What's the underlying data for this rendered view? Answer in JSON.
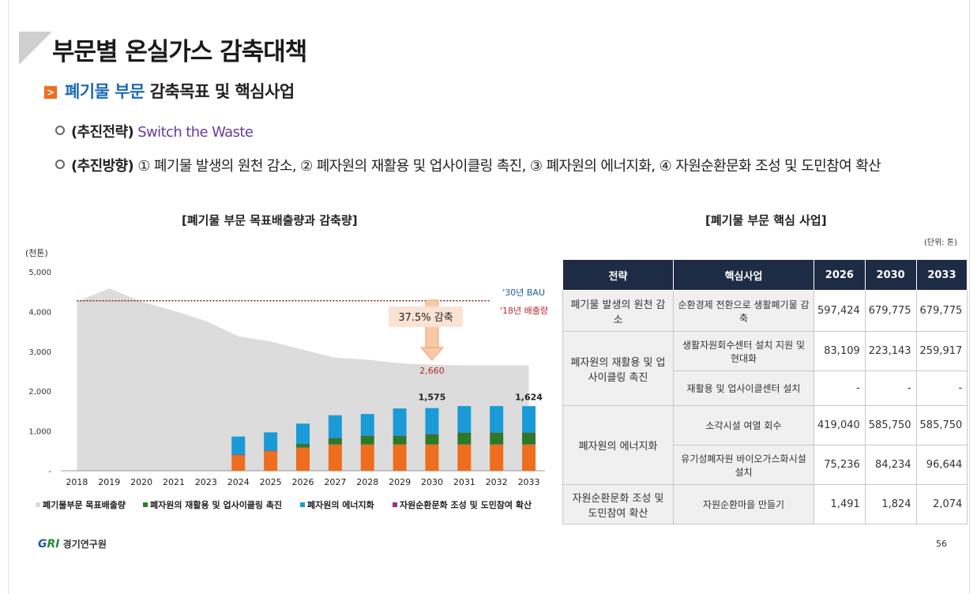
{
  "header": {
    "title": "부문별 온실가스 감축대책",
    "section_icon": ">",
    "section_highlight": "폐기물 부문",
    "section_rest": " 감축목표 및 핵심사업"
  },
  "bullets": [
    {
      "label": "(추진전략)",
      "text": " Switch the Waste"
    },
    {
      "label": "(추진방향)",
      "text": " ① 폐기물 발생의 원천 감소, ② 폐자원의 재활용 및 업사이클링 촉진, ③ 폐자원의 에너지화, ④ 자원순환문화 조성 및 도민참여 확산"
    }
  ],
  "chart_title": "[폐기물 부문 목표배출량과 감축량]",
  "chart_data": {
    "type": "bar",
    "ylabel": "(천톤)",
    "ylim": [
      0,
      5000
    ],
    "yticks": [
      "5,000",
      "4,000",
      "3,000",
      "2,000",
      "1,000",
      "-"
    ],
    "categories": [
      "2018",
      "2019",
      "2020",
      "2021",
      "2023",
      "2024",
      "2025",
      "2026",
      "2027",
      "2028",
      "2029",
      "2030",
      "2031",
      "2032",
      "2033"
    ],
    "area": {
      "name": "폐기물부문 목표배출량",
      "values": [
        4250,
        4580,
        4250,
        4020,
        3760,
        3380,
        3250,
        3040,
        2840,
        2790,
        2700,
        2660,
        2650,
        2650,
        2650
      ],
      "color": "#dcdcdc"
    },
    "series": [
      {
        "name": "자원순환문화 조성 및 도민참여 확산",
        "color": "#9a2f8f",
        "values": [
          0,
          0,
          0,
          0,
          0,
          5,
          5,
          5,
          5,
          5,
          5,
          5,
          5,
          5,
          5
        ]
      },
      {
        "name": "폐자원의 에너지화",
        "color": "#ee6d1e",
        "values": [
          0,
          0,
          0,
          0,
          0,
          400,
          500,
          580,
          660,
          660,
          660,
          660,
          660,
          660,
          660
        ]
      },
      {
        "name": "폐자원의 재활용 및 업사이클링 촉진",
        "color": "#2a7a2a",
        "values": [
          0,
          0,
          0,
          0,
          0,
          0,
          0,
          90,
          160,
          220,
          220,
          260,
          300,
          300,
          300
        ]
      },
      {
        "name": "폐자원의 에너지화",
        "color": "#1a9bd7",
        "values": [
          0,
          0,
          0,
          0,
          0,
          455,
          460,
          510,
          570,
          540,
          680,
          650,
          660,
          660,
          659
        ]
      }
    ],
    "totals_labels": [
      {
        "category": "2030",
        "text": "1,575"
      },
      {
        "category": "2033",
        "text": "1,624"
      }
    ],
    "reference_line": {
      "value": 4270,
      "color": "#8b1a1a"
    },
    "annotations": {
      "bau": "'30년 BAU",
      "base": "'18년 배출량",
      "reduction": "37.5% 감축",
      "target": "2,660"
    },
    "legend": [
      {
        "label": "폐기물부문 목표배출량",
        "color": "#dcdcdc"
      },
      {
        "label": "폐자원의 재활용 및 업사이클링 촉진",
        "color": "#2a7a2a"
      },
      {
        "label": "폐자원의 에너지화",
        "color": "#1a9bd7"
      },
      {
        "label": "자원순환문화 조성 및 도민참여 확산",
        "color": "#9a2f8f"
      }
    ]
  },
  "table_title": "[폐기물 부문 핵심 사업]",
  "table_unit": "(단위: 톤)",
  "table": {
    "headers": [
      "전략",
      "핵심사업",
      "2026",
      "2030",
      "2033"
    ],
    "rows": [
      {
        "strategy": "폐기물 발생의 원천 감소",
        "project": "순환경제 전환으로 생활폐기물 감축",
        "v2026": "597,424",
        "v2030": "679,775",
        "v2033": "679,775"
      },
      {
        "strategy": "폐자원의 재활용 및 업사이클링 촉진",
        "project": "생활자원회수센터 설치 지원 및 현대화",
        "v2026": "83,109",
        "v2030": "223,143",
        "v2033": "259,917"
      },
      {
        "strategy": "",
        "project": "재활용 및 업사이클센터 설치",
        "v2026": "-",
        "v2030": "-",
        "v2033": "-"
      },
      {
        "strategy": "폐자원의 에너지화",
        "project": "소각시설 여열 회수",
        "v2026": "419,040",
        "v2030": "585,750",
        "v2033": "585,750"
      },
      {
        "strategy": "",
        "project": "유기성폐자원 바이오가스화시설 설치",
        "v2026": "75,236",
        "v2030": "84,234",
        "v2033": "96,644"
      },
      {
        "strategy": "자원순환문화 조성 및 도민참여 확산",
        "project": "자원순환마을 만들기",
        "v2026": "1,491",
        "v2030": "1,824",
        "v2033": "2,074"
      }
    ]
  },
  "footer": {
    "logo_g": "G",
    "logo_ri": "RI",
    "logo_text": " 경기연구원",
    "page": "56"
  }
}
